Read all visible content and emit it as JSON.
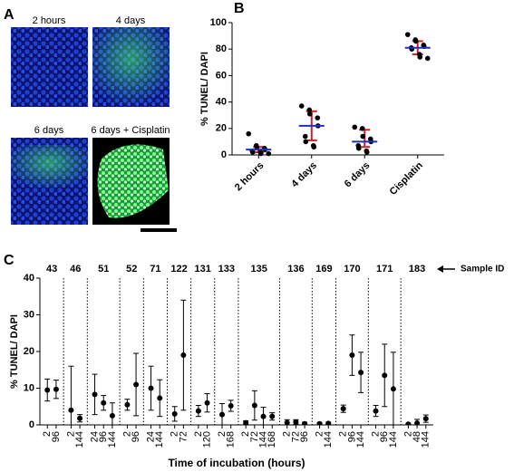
{
  "panel_a": {
    "label": "A",
    "images": [
      "2 hours",
      "4 days",
      "6 days",
      "6 days + Cisplatin"
    ]
  },
  "chart_data": [
    {
      "type": "dotplot",
      "panel": "B",
      "ylabel": "% TUNEL/ DAPI",
      "categories": [
        "2 hours",
        "4 days",
        "6 days",
        "Cisplatin"
      ],
      "points": [
        [
          16,
          7,
          6,
          5,
          4,
          3,
          2,
          2,
          1,
          1
        ],
        [
          37,
          34,
          31,
          28,
          22,
          14,
          10,
          7,
          6
        ],
        [
          21,
          20,
          14,
          12,
          10,
          7,
          5,
          3,
          2
        ],
        [
          91,
          87,
          86,
          83,
          82,
          81,
          80,
          76,
          74,
          73
        ]
      ],
      "medians": [
        4,
        22,
        10,
        81
      ],
      "q1": [
        2,
        11,
        6,
        76
      ],
      "q3": [
        6,
        33,
        19,
        86
      ],
      "point_color": "#000000",
      "median_color": "#1f2fbf",
      "iqr_color": "#d02020",
      "ylim": [
        0,
        100
      ],
      "yticks": [
        0,
        20,
        40,
        60,
        80,
        100
      ]
    },
    {
      "type": "errorbar",
      "panel": "C",
      "ylabel": "% TUNEL/ DAPI",
      "xlabel": "Time of incubation (hours)",
      "annotation": "Sample ID",
      "color": "#000000",
      "ylim": [
        0,
        40
      ],
      "yticks": [
        0,
        10,
        20,
        30,
        40
      ],
      "groups": [
        {
          "name": "43",
          "x": [
            "2",
            "96"
          ],
          "values": [
            9.5,
            9.7
          ],
          "errors": [
            3,
            2.5
          ]
        },
        {
          "name": "46",
          "x": [
            "2",
            "144"
          ],
          "values": [
            4,
            1.8
          ],
          "errors": [
            12,
            1
          ]
        },
        {
          "name": "51",
          "x": [
            "24",
            "96",
            "144"
          ],
          "values": [
            8.3,
            6,
            2.5
          ],
          "errors": [
            5.5,
            2,
            3.5
          ]
        },
        {
          "name": "52",
          "x": [
            "2",
            "96"
          ],
          "values": [
            5.5,
            11
          ],
          "errors": [
            1.5,
            8.5
          ]
        },
        {
          "name": "71",
          "x": [
            "24",
            "144"
          ],
          "values": [
            10,
            7.3
          ],
          "errors": [
            6,
            5
          ]
        },
        {
          "name": "122",
          "x": [
            "2",
            "72"
          ],
          "values": [
            3,
            19
          ],
          "errors": [
            2,
            15
          ]
        },
        {
          "name": "131",
          "x": [
            "2",
            "120"
          ],
          "values": [
            3.8,
            6
          ],
          "errors": [
            1.5,
            2.5
          ]
        },
        {
          "name": "133",
          "x": [
            "2",
            "168"
          ],
          "values": [
            2.8,
            5.2
          ],
          "errors": [
            3,
            1.5
          ]
        },
        {
          "name": "135",
          "x": [
            "2",
            "72",
            "144",
            "168"
          ],
          "values": [
            0.6,
            5.3,
            2.3,
            2.3
          ],
          "errors": [
            0.5,
            4,
            2.5,
            1
          ]
        },
        {
          "name": "136",
          "x": [
            "2",
            "72",
            "96"
          ],
          "values": [
            0.6,
            0.8,
            0.3
          ],
          "errors": [
            0.8,
            0.6,
            0.4
          ]
        },
        {
          "name": "169",
          "x": [
            "2",
            "144"
          ],
          "values": [
            0.3,
            0.4
          ],
          "errors": [
            0.3,
            0.3
          ]
        },
        {
          "name": "170",
          "x": [
            "2",
            "96",
            "144"
          ],
          "values": [
            4.4,
            19,
            14.3
          ],
          "errors": [
            1,
            5.5,
            5.5
          ]
        },
        {
          "name": "171",
          "x": [
            "2",
            "96",
            "144"
          ],
          "values": [
            3.8,
            13.5,
            9.8
          ],
          "errors": [
            1.5,
            8.5,
            10
          ]
        },
        {
          "name": "183",
          "x": [
            "2",
            "48",
            "144"
          ],
          "values": [
            0.2,
            0.5,
            1.7
          ],
          "errors": [
            0.2,
            1,
            1
          ]
        }
      ]
    }
  ]
}
